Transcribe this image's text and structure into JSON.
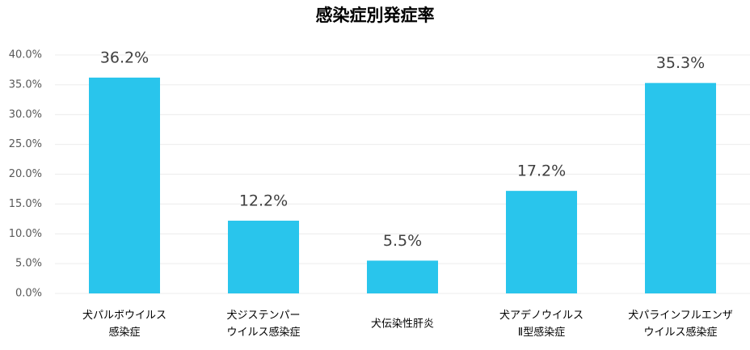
{
  "chart_data": {
    "type": "bar",
    "title": "感染症別発症率",
    "categories": [
      [
        "犬パルボウイルス",
        "感染症"
      ],
      [
        "犬ジステンパー",
        "ウイルス感染症"
      ],
      [
        "犬伝染性肝炎"
      ],
      [
        "犬アデノウイルス",
        "Ⅱ型感染症"
      ],
      [
        "犬パラインフルエンザ",
        "ウイルス感染症"
      ]
    ],
    "values": [
      36.2,
      12.2,
      5.5,
      17.2,
      35.3
    ],
    "value_labels": [
      "36.2%",
      "12.2%",
      "5.5%",
      "17.2%",
      "35.3%"
    ],
    "color": "#29c5ec",
    "ylim": [
      0,
      40
    ],
    "yticks": [
      {
        "value": 0,
        "label": "0.0%"
      },
      {
        "value": 5,
        "label": "5.0%"
      },
      {
        "value": 10,
        "label": "10.0%"
      },
      {
        "value": 15,
        "label": "15.0%"
      },
      {
        "value": 20,
        "label": "20.0%"
      },
      {
        "value": 25,
        "label": "25.0%"
      },
      {
        "value": 30,
        "label": "30.0%"
      },
      {
        "value": 35,
        "label": "35.0%"
      },
      {
        "value": 40,
        "label": "40.0%"
      }
    ],
    "grid": true
  }
}
